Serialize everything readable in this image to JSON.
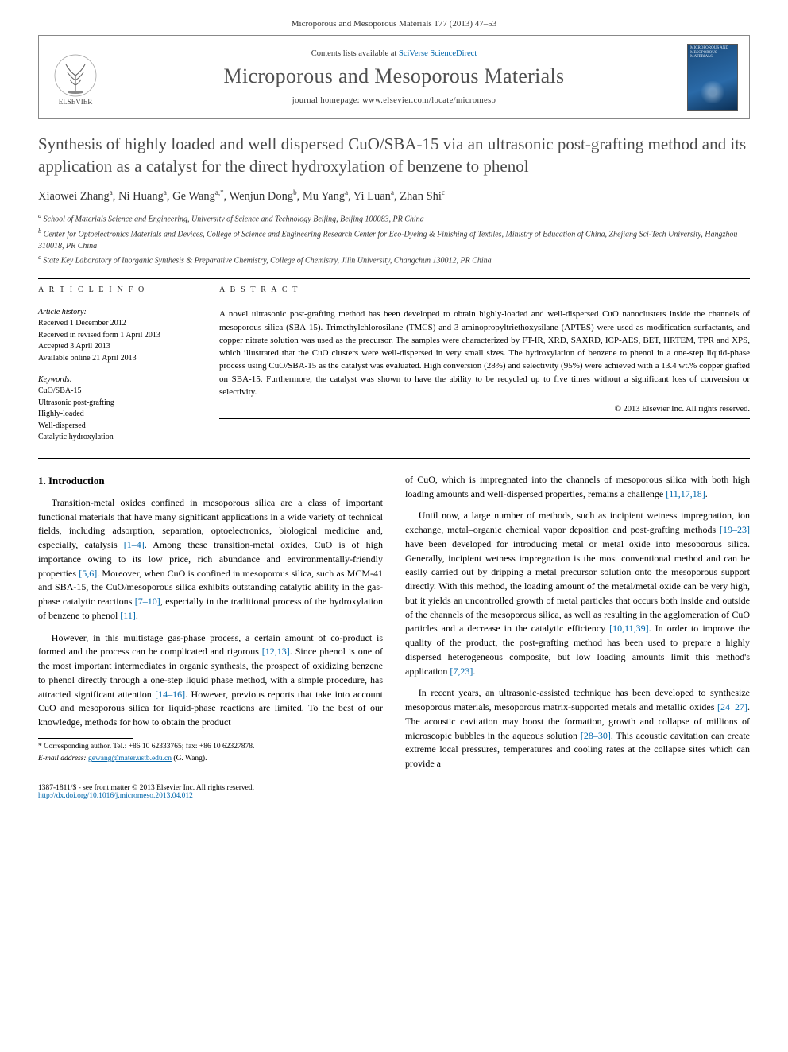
{
  "journal_ref": "Microporous and Mesoporous Materials 177 (2013) 47–53",
  "header": {
    "contents_prefix": "Contents lists available at ",
    "contents_link": "SciVerse ScienceDirect",
    "journal_name": "Microporous and Mesoporous Materials",
    "homepage_prefix": "journal homepage: ",
    "homepage_url": "www.elsevier.com/locate/micromeso",
    "publisher": "ELSEVIER",
    "cover_label": "MICROPOROUS AND MESOPOROUS MATERIALS"
  },
  "title": "Synthesis of highly loaded and well dispersed CuO/SBA-15 via an ultrasonic post-grafting method and its application as a catalyst for the direct hydroxylation of benzene to phenol",
  "authors_html": "Xiaowei Zhang<sup>a</sup>, Ni Huang<sup>a</sup>, Ge Wang<sup>a,*</sup>, Wenjun Dong<sup>b</sup>, Mu Yang<sup>a</sup>, Yi Luan<sup>a</sup>, Zhan Shi<sup>c</sup>",
  "affiliations": [
    "a School of Materials Science and Engineering, University of Science and Technology Beijing, Beijing 100083, PR China",
    "b Center for Optoelectronics Materials and Devices, College of Science and Engineering Research Center for Eco-Dyeing & Finishing of Textiles, Ministry of Education of China, Zhejiang Sci-Tech University, Hangzhou 310018, PR China",
    "c State Key Laboratory of Inorganic Synthesis & Preparative Chemistry, College of Chemistry, Jilin University, Changchun 130012, PR China"
  ],
  "info": {
    "head": "A R T I C L E   I N F O",
    "history_head": "Article history:",
    "history": [
      "Received 1 December 2012",
      "Received in revised form 1 April 2013",
      "Accepted 3 April 2013",
      "Available online 21 April 2013"
    ],
    "keywords_head": "Keywords:",
    "keywords": [
      "CuO/SBA-15",
      "Ultrasonic post-grafting",
      "Highly-loaded",
      "Well-dispersed",
      "Catalytic hydroxylation"
    ]
  },
  "abstract": {
    "head": "A B S T R A C T",
    "text": "A novel ultrasonic post-grafting method has been developed to obtain highly-loaded and well-dispersed CuO nanoclusters inside the channels of mesoporous silica (SBA-15). Trimethylchlorosilane (TMCS) and 3-aminopropyltriethoxysilane (APTES) were used as modification surfactants, and copper nitrate solution was used as the precursor. The samples were characterized by FT-IR, XRD, SAXRD, ICP-AES, BET, HRTEM, TPR and XPS, which illustrated that the CuO clusters were well-dispersed in very small sizes. The hydroxylation of benzene to phenol in a one-step liquid-phase process using CuO/SBA-15 as the catalyst was evaluated. High conversion (28%) and selectivity (95%) were achieved with a 13.4 wt.% copper grafted on SBA-15. Furthermore, the catalyst was shown to have the ability to be recycled up to five times without a significant loss of conversion or selectivity.",
    "copyright": "© 2013 Elsevier Inc. All rights reserved."
  },
  "sections": {
    "intro_head": "1. Introduction",
    "p1": "Transition-metal oxides confined in mesoporous silica are a class of important functional materials that have many significant applications in a wide variety of technical fields, including adsorption, separation, optoelectronics, biological medicine and, especially, catalysis [1–4]. Among these transition-metal oxides, CuO is of high importance owing to its low price, rich abundance and environmentally-friendly properties [5,6]. Moreover, when CuO is confined in mesoporous silica, such as MCM-41 and SBA-15, the CuO/mesoporous silica exhibits outstanding catalytic ability in the gas-phase catalytic reactions [7–10], especially in the traditional process of the hydroxylation of benzene to phenol [11].",
    "p2": "However, in this multistage gas-phase process, a certain amount of co-product is formed and the process can be complicated and rigorous [12,13]. Since phenol is one of the most important intermediates in organic synthesis, the prospect of oxidizing benzene to phenol directly through a one-step liquid phase method, with a simple procedure, has attracted significant attention [14–16]. However, previous reports that take into account CuO and mesoporous silica for liquid-phase reactions are limited. To the best of our knowledge, methods for how to obtain the product",
    "p3": "of CuO, which is impregnated into the channels of mesoporous silica with both high loading amounts and well-dispersed properties, remains a challenge [11,17,18].",
    "p4": "Until now, a large number of methods, such as incipient wetness impregnation, ion exchange, metal–organic chemical vapor deposition and post-grafting methods [19–23] have been developed for introducing metal or metal oxide into mesoporous silica. Generally, incipient wetness impregnation is the most conventional method and can be easily carried out by dripping a metal precursor solution onto the mesoporous support directly. With this method, the loading amount of the metal/metal oxide can be very high, but it yields an uncontrolled growth of metal particles that occurs both inside and outside of the channels of the mesoporous silica, as well as resulting in the agglomeration of CuO particles and a decrease in the catalytic efficiency [10,11,39]. In order to improve the quality of the product, the post-grafting method has been used to prepare a highly dispersed heterogeneous composite, but low loading amounts limit this method's application [7,23].",
    "p5": "In recent years, an ultrasonic-assisted technique has been developed to synthesize mesoporous materials, mesoporous matrix-supported metals and metallic oxides [24–27]. The acoustic cavitation may boost the formation, growth and collapse of millions of microscopic bubbles in the aqueous solution [28–30]. This acoustic cavitation can create extreme local pressures, temperatures and cooling rates at the collapse sites which can provide a"
  },
  "footnotes": {
    "corr": "* Corresponding author. Tel.: +86 10 62333765; fax: +86 10 62327878.",
    "email_label": "E-mail address:",
    "email": "gewang@mater.ustb.edu.cn",
    "email_who": "(G. Wang)."
  },
  "bottom": {
    "issn": "1387-1811/$ - see front matter © 2013 Elsevier Inc. All rights reserved.",
    "doi_url": "http://dx.doi.org/10.1016/j.micromeso.2013.04.012"
  },
  "colors": {
    "link": "#0066aa",
    "title_gray": "#4a4a4a",
    "rule": "#000000",
    "cover_bg_from": "#1a4a7a",
    "cover_bg_to": "#0b2f55"
  },
  "typography": {
    "body_pt": 12,
    "title_pt": 21,
    "journal_name_pt": 26,
    "abstract_pt": 11,
    "footnote_pt": 9.5
  }
}
